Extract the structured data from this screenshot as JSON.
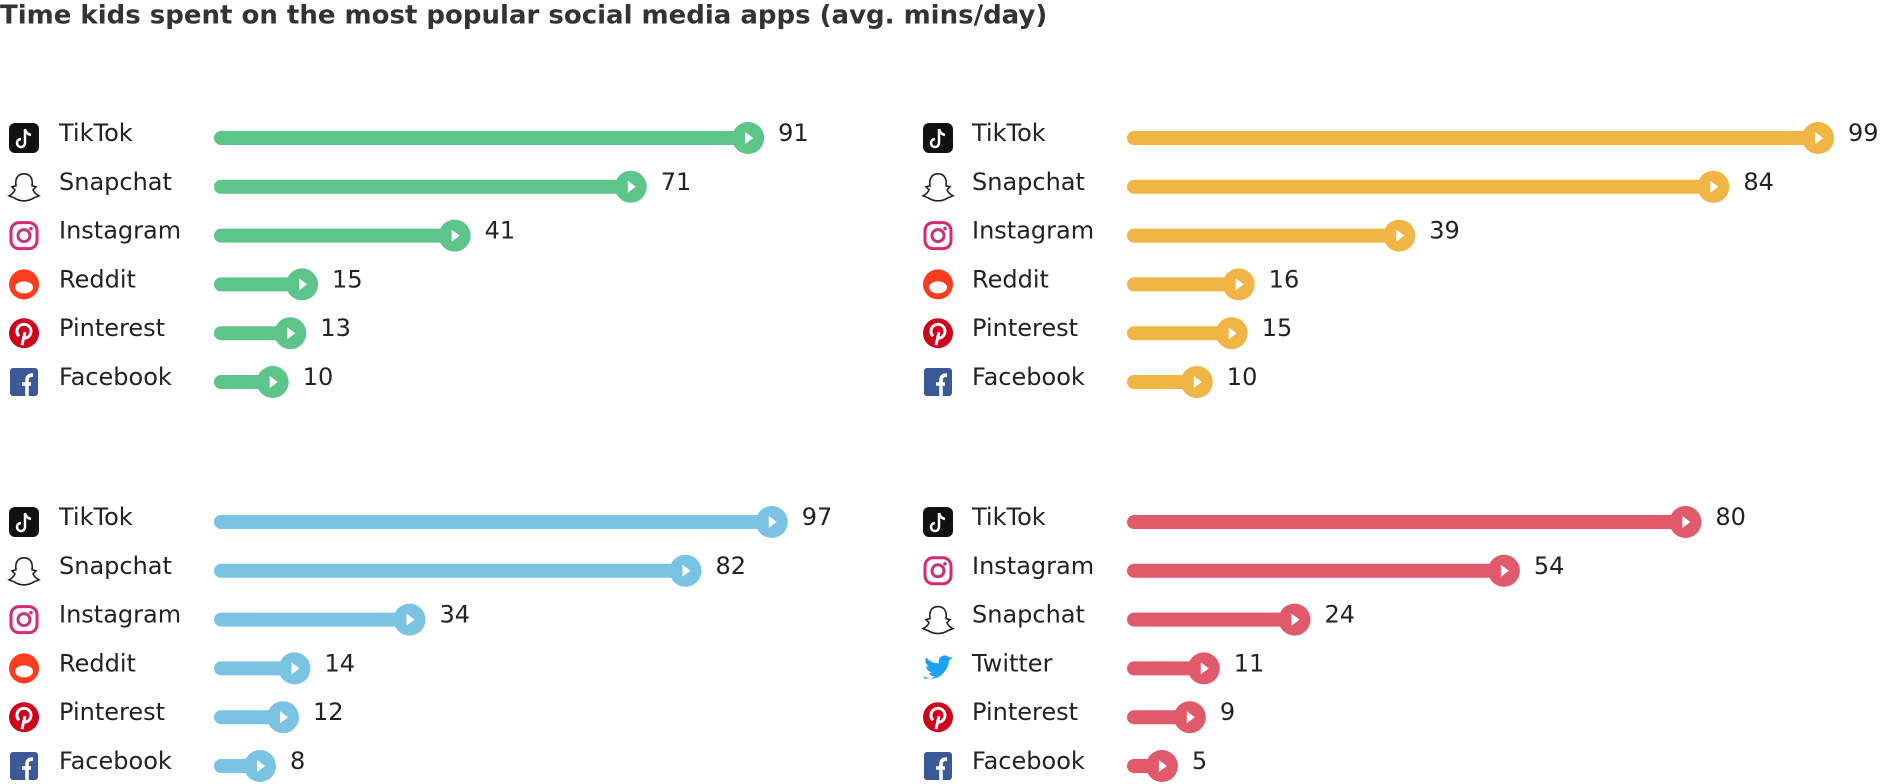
{
  "title": "Time kids spent on the most popular social media apps (avg. mins/day)",
  "chart_data": [
    {
      "type": "bar",
      "orientation": "horizontal",
      "color": "#5dc48a",
      "xlim": [
        0,
        100
      ],
      "categories": [
        "TikTok",
        "Snapchat",
        "Instagram",
        "Reddit",
        "Pinterest",
        "Facebook"
      ],
      "values": [
        91,
        71,
        41,
        15,
        13,
        10
      ]
    },
    {
      "type": "bar",
      "orientation": "horizontal",
      "color": "#f0b545",
      "xlim": [
        0,
        100
      ],
      "categories": [
        "TikTok",
        "Snapchat",
        "Instagram",
        "Reddit",
        "Pinterest",
        "Facebook"
      ],
      "values": [
        99,
        84,
        39,
        16,
        15,
        10
      ]
    },
    {
      "type": "bar",
      "orientation": "horizontal",
      "color": "#7bc3e2",
      "xlim": [
        0,
        100
      ],
      "categories": [
        "TikTok",
        "Snapchat",
        "Instagram",
        "Reddit",
        "Pinterest",
        "Facebook"
      ],
      "values": [
        97,
        82,
        34,
        14,
        12,
        8
      ]
    },
    {
      "type": "bar",
      "orientation": "horizontal",
      "color": "#e05a6b",
      "xlim": [
        0,
        100
      ],
      "categories": [
        "TikTok",
        "Instagram",
        "Snapchat",
        "Twitter",
        "Pinterest",
        "Facebook"
      ],
      "values": [
        80,
        54,
        24,
        11,
        9,
        5
      ]
    }
  ]
}
